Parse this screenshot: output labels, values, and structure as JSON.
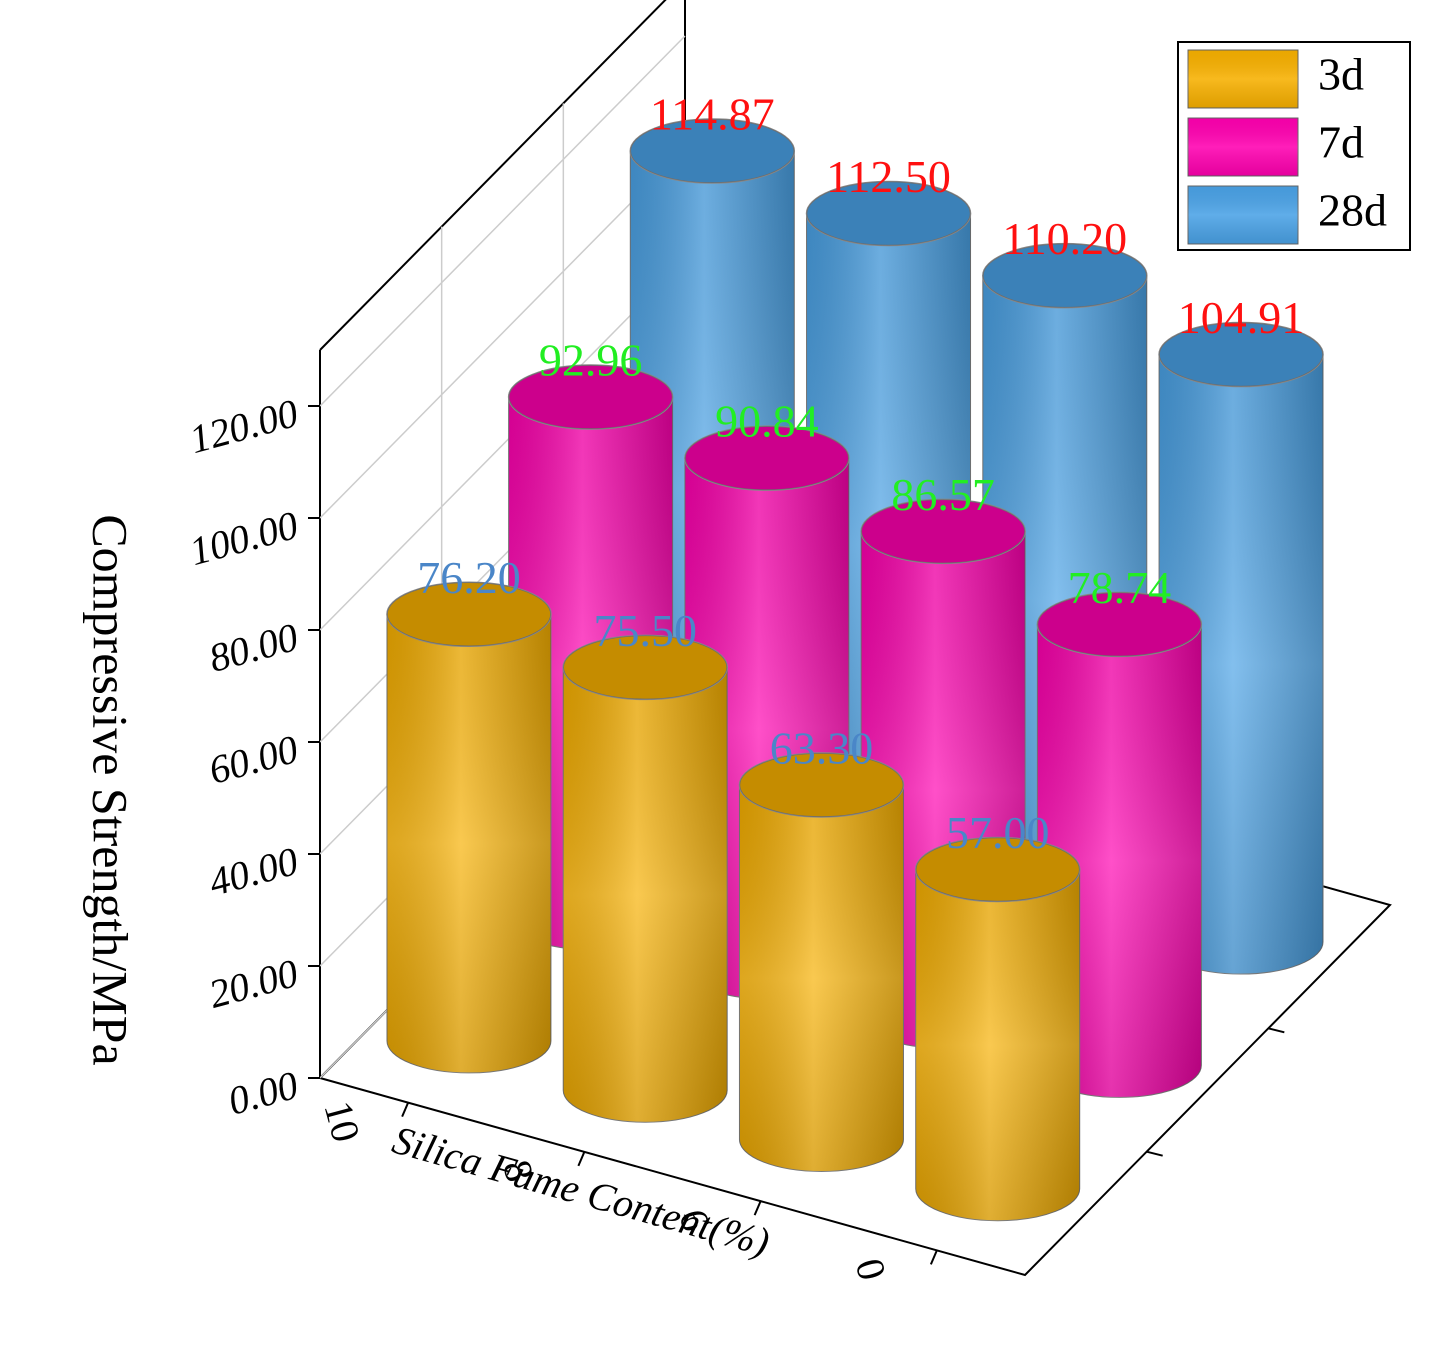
{
  "chart_data": {
    "type": "bar3d",
    "y_label": "Compressive Strength/MPa",
    "x_label": "Silica Fume Content(%)",
    "categories": [
      "10",
      "8",
      "6",
      "0"
    ],
    "series": [
      {
        "name": "3d",
        "color": "#f7b000",
        "label_color": "#4a86c8",
        "values": [
          76.2,
          75.5,
          63.3,
          57.0
        ],
        "value_labels": [
          "76.20",
          "75.50",
          "63.30",
          "57.00"
        ]
      },
      {
        "name": "7d",
        "color": "#ff00b0",
        "label_color": "#22ee22",
        "values": [
          92.96,
          90.84,
          86.57,
          78.74
        ],
        "value_labels": [
          "92.96",
          "90.84",
          "86.57",
          "78.74"
        ]
      },
      {
        "name": "28d",
        "color": "#4aa2e6",
        "label_color": "#ff1010",
        "values": [
          114.87,
          112.5,
          110.2,
          104.91
        ],
        "value_labels": [
          "114.87",
          "112.50",
          "110.20",
          "104.91"
        ]
      }
    ],
    "ylim": [
      0,
      130
    ],
    "yticks": [
      {
        "value": 0,
        "label": "0.00"
      },
      {
        "value": 20,
        "label": "20.00"
      },
      {
        "value": 40,
        "label": "40.00"
      },
      {
        "value": 60,
        "label": "60.00"
      },
      {
        "value": 80,
        "label": "80.00"
      },
      {
        "value": 100,
        "label": "100.00"
      },
      {
        "value": 120,
        "label": "120.00"
      }
    ],
    "grid": true,
    "legend": "upper right"
  }
}
